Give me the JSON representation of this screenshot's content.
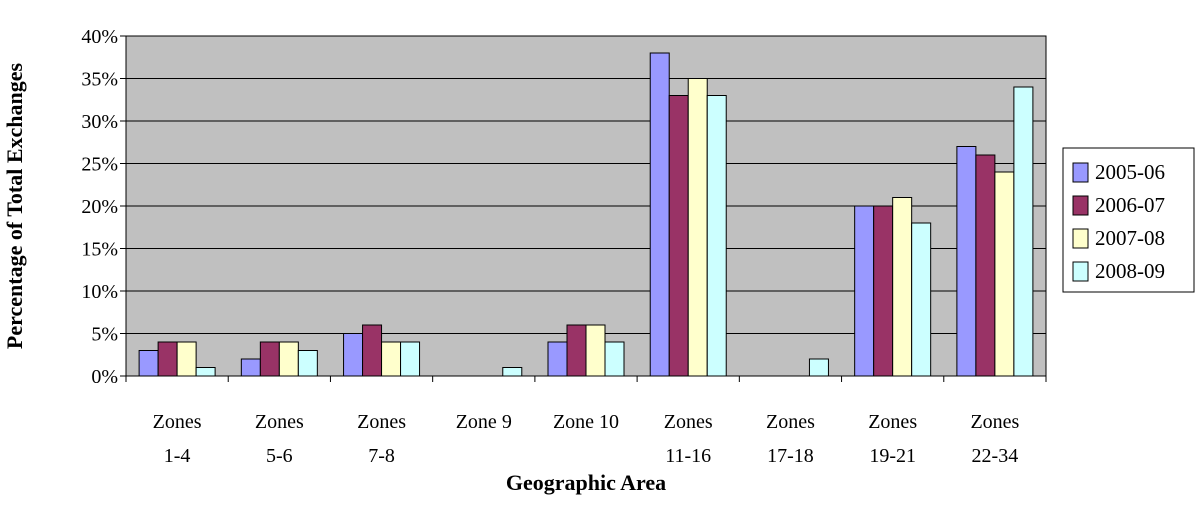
{
  "chart_data": {
    "type": "bar",
    "xlabel": "Geographic Area",
    "ylabel": "Percentage of Total Exchanges",
    "categories": [
      [
        "Zones",
        "1-4"
      ],
      [
        "Zones",
        "5-6"
      ],
      [
        "Zones",
        "7-8"
      ],
      [
        "Zone 9"
      ],
      [
        "Zone 10"
      ],
      [
        "Zones",
        "11-16"
      ],
      [
        "Zones",
        "17-18"
      ],
      [
        "Zones",
        "19-21"
      ],
      [
        "Zones",
        "22-34"
      ]
    ],
    "ylim": [
      0,
      40
    ],
    "y_ticks": [
      "0%",
      "5%",
      "10%",
      "15%",
      "20%",
      "25%",
      "30%",
      "35%",
      "40%"
    ],
    "grid": true,
    "legend_position": "right",
    "plot_background": "#c0c0c0",
    "series": [
      {
        "name": "2005-06",
        "color": "#9999ff",
        "values": [
          3,
          2,
          5,
          0,
          4,
          38,
          0,
          20,
          27
        ]
      },
      {
        "name": "2006-07",
        "color": "#993366",
        "values": [
          4,
          4,
          6,
          0,
          6,
          33,
          0,
          20,
          26
        ]
      },
      {
        "name": "2007-08",
        "color": "#ffffcc",
        "values": [
          4,
          4,
          4,
          0,
          6,
          35,
          0,
          21,
          24
        ]
      },
      {
        "name": "2008-09",
        "color": "#ccffff",
        "values": [
          1,
          3,
          4,
          1,
          4,
          33,
          2,
          18,
          34
        ]
      }
    ]
  }
}
